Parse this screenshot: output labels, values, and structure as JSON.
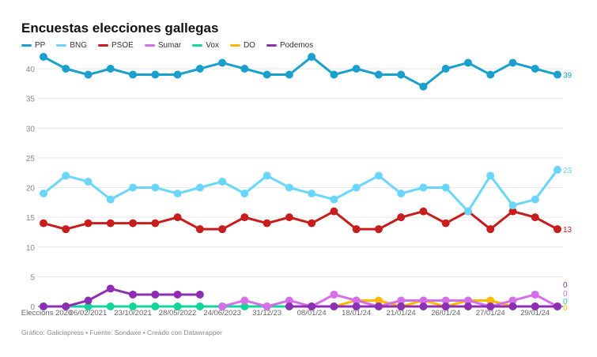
{
  "title": "Encuestas elecciones gallegas",
  "footer": "Gráfico: Galiciapress • Fuente: Sondaxe • Creado con Datawrapper",
  "chart_data": {
    "type": "line",
    "title": "Encuestas elecciones gallegas",
    "ylim": [
      0,
      42
    ],
    "yticks": [
      0,
      5,
      10,
      15,
      20,
      25,
      30,
      35,
      40
    ],
    "grid": true,
    "legend": "top-left",
    "xtick_labels": {
      "0": "Eleccións 2020",
      "2": "06/02/2021",
      "4": "23/10/2021",
      "6": "28/05/2022",
      "8": "24/06/2023",
      "10": "31/12/23",
      "12": "08/01/24",
      "14": "18/01/24",
      "16": "21/01/24",
      "18": "26/01/24",
      "20": "27/01/24",
      "22": "29/01/24"
    },
    "series": [
      {
        "name": "PP",
        "color": "#1aa0cc",
        "values": [
          42,
          40,
          39,
          40,
          39,
          39,
          39,
          40,
          41,
          40,
          39,
          39,
          42,
          39,
          40,
          39,
          39,
          37,
          40,
          41,
          39,
          41,
          40,
          39
        ],
        "end_label": "39"
      },
      {
        "name": "BNG",
        "color": "#6ad6fb",
        "values": [
          19,
          22,
          21,
          18,
          20,
          20,
          19,
          20,
          21,
          19,
          22,
          20,
          19,
          18,
          20,
          22,
          19,
          20,
          20,
          16,
          22,
          17,
          18,
          23
        ],
        "end_label": "23"
      },
      {
        "name": "PSOE",
        "color": "#c71e1d",
        "values": [
          14,
          13,
          14,
          14,
          14,
          14,
          15,
          13,
          13,
          15,
          14,
          15,
          14,
          16,
          13,
          13,
          15,
          16,
          14,
          16,
          13,
          16,
          15,
          13
        ],
        "end_label": "13"
      },
      {
        "name": "Sumar",
        "color": "#d56ee8",
        "values": [
          null,
          null,
          null,
          null,
          null,
          null,
          null,
          null,
          0,
          1,
          0,
          1,
          0,
          2,
          1,
          0,
          1,
          1,
          1,
          1,
          0,
          1,
          2,
          0
        ],
        "end_label": "0"
      },
      {
        "name": "Vox",
        "color": "#15d49a",
        "values": [
          0,
          0,
          0,
          0,
          0,
          0,
          0,
          0,
          0,
          0,
          0,
          0,
          0,
          0,
          0,
          0,
          0,
          0,
          0,
          0,
          0,
          0,
          0,
          0
        ],
        "end_label": "0"
      },
      {
        "name": "DO",
        "color": "#fcb900",
        "values": [
          null,
          null,
          null,
          null,
          null,
          null,
          null,
          null,
          null,
          null,
          null,
          null,
          null,
          0,
          1,
          1,
          0,
          1,
          0,
          1,
          1,
          0,
          0,
          0
        ],
        "end_label": "0"
      },
      {
        "name": "Podemos",
        "color": "#8e2fb3",
        "values": [
          0,
          0,
          1,
          3,
          2,
          2,
          2,
          2,
          null,
          null,
          null,
          0,
          0,
          0,
          0,
          0,
          0,
          0,
          0,
          0,
          0,
          0,
          0,
          0
        ],
        "end_label": "0"
      }
    ]
  }
}
